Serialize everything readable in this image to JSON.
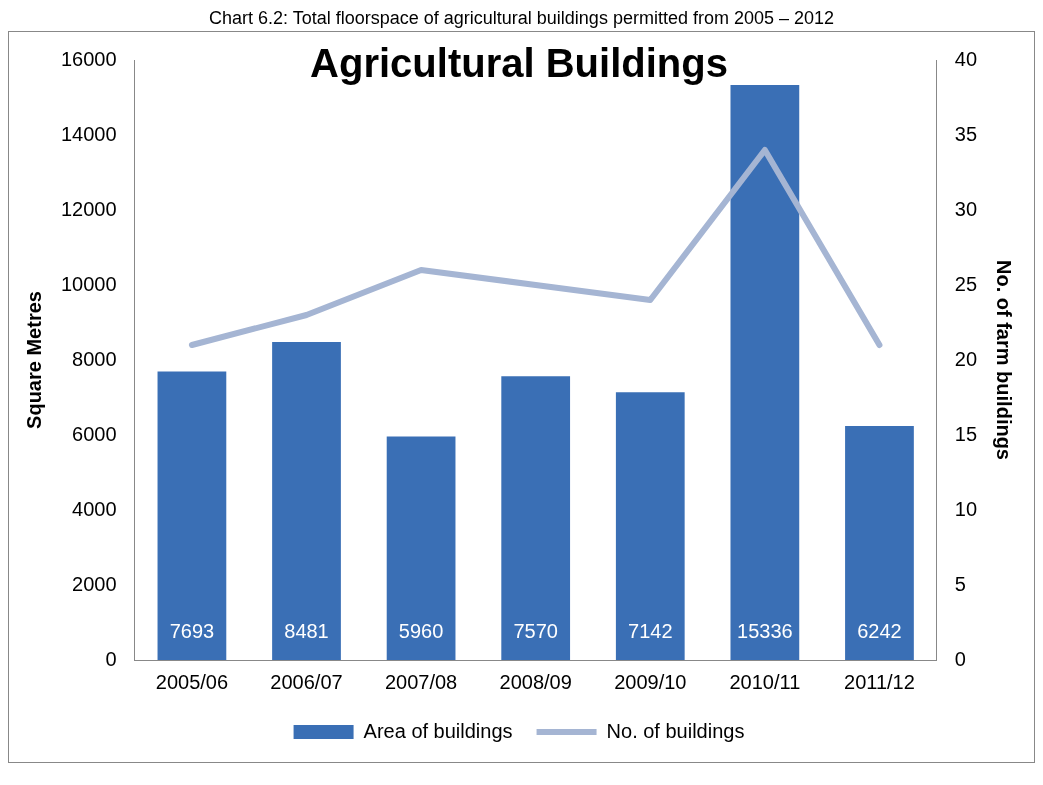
{
  "chart_data": {
    "type": "bar",
    "title": "Agricultural Buildings",
    "annotations": [
      "Chart 6.2: Total floorspace of agricultural buildings permitted from 2005 – 2012"
    ],
    "categories": [
      "2005/06",
      "2006/07",
      "2007/08",
      "2008/09",
      "2009/10",
      "2010/11",
      "2011/12"
    ],
    "series": [
      {
        "name": "Area of buildings",
        "color": "#3a6fb5",
        "values": [
          7693,
          8481,
          5960,
          7570,
          7142,
          15336,
          6242
        ],
        "data_labels": true
      },
      {
        "name": "No. of buildings",
        "type": "line",
        "axis": "y2",
        "color": "#a5b5d3",
        "values": [
          21,
          23,
          26,
          25,
          24,
          34,
          21
        ]
      }
    ],
    "ylabel": "Square Metres",
    "y2label": "No. of farm buildings",
    "ylim": [
      0,
      16000
    ],
    "yticks": [
      0,
      2000,
      4000,
      6000,
      8000,
      10000,
      12000,
      14000,
      16000
    ],
    "y2lim": [
      0,
      40
    ],
    "y2ticks": [
      0,
      5,
      10,
      15,
      20,
      25,
      30,
      35,
      40
    ],
    "grid": false,
    "legend": "bottom",
    "marker": "none"
  }
}
